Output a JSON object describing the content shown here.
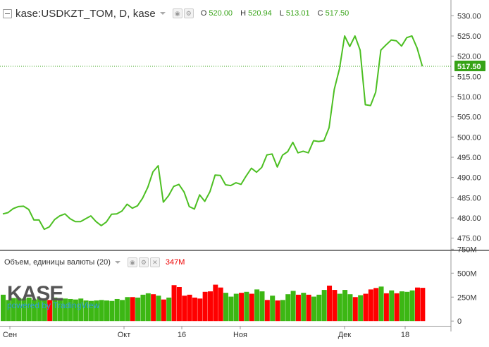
{
  "header": {
    "symbol": "kase:USDKZT_TOM, D, kase",
    "ohlc": [
      {
        "key": "O",
        "value": "520.00"
      },
      {
        "key": "H",
        "value": "520.94"
      },
      {
        "key": "L",
        "value": "513.01"
      },
      {
        "key": "C",
        "value": "517.50"
      }
    ]
  },
  "volume_header": {
    "label": "Объем, единицы валюты (20)",
    "value": "347M"
  },
  "logo": {
    "text": "KASE",
    "powered": "powered by TradingView"
  },
  "colors": {
    "up": "#3cb714",
    "down": "#ff0000",
    "line": "#4cbf22",
    "last_price_bg": "#37a317"
  },
  "chart_data": [
    {
      "type": "line",
      "title": "kase:USDKZT_TOM, D, kase",
      "x_tick_labels": [
        "Сен",
        "Окт",
        "16",
        "Ноя",
        "Дек",
        "18"
      ],
      "y_ticks": [
        "475.00",
        "480.00",
        "485.00",
        "490.00",
        "495.00",
        "500.00",
        "505.00",
        "510.00",
        "515.00",
        "520.00",
        "525.00",
        "530.00"
      ],
      "ylim": [
        472.5,
        532.5
      ],
      "last_value_label": "517.50",
      "last_value": 517.5,
      "values": [
        481.0,
        481.3,
        482.3,
        482.8,
        482.9,
        482.1,
        479.5,
        479.5,
        477.2,
        477.8,
        479.6,
        480.5,
        481.0,
        479.8,
        479.1,
        479.1,
        479.8,
        480.5,
        479.1,
        478.1,
        479.0,
        480.9,
        481.0,
        481.7,
        483.4,
        482.4,
        483.0,
        484.9,
        487.6,
        491.4,
        492.9,
        483.9,
        485.5,
        487.8,
        488.3,
        486.4,
        482.8,
        482.2,
        485.7,
        484.1,
        486.5,
        490.6,
        490.5,
        488.2,
        488.0,
        488.7,
        488.3,
        490.4,
        492.3,
        491.3,
        492.5,
        495.6,
        495.8,
        492.6,
        495.5,
        496.4,
        498.7,
        496.1,
        496.5,
        496.1,
        499.1,
        498.9,
        499.1,
        502.3,
        511.8,
        516.9,
        525.0,
        522.4,
        525.0,
        521.5,
        508.0,
        507.8,
        511.1,
        521.5,
        522.8,
        524.0,
        523.8,
        522.5,
        524.6,
        525.0,
        522.0,
        517.5
      ]
    },
    {
      "type": "bar",
      "title": "Объем, единицы валюты (20)",
      "y_ticks": [
        "0",
        "250M",
        "500M",
        "750M"
      ],
      "ylim": [
        -50,
        760
      ],
      "last_value_label": "347M",
      "values": [
        275,
        220,
        240,
        240,
        235,
        245,
        225,
        240,
        225,
        220,
        245,
        240,
        235,
        230,
        225,
        235,
        215,
        210,
        215,
        220,
        215,
        210,
        230,
        220,
        250,
        250,
        245,
        275,
        290,
        280,
        265,
        225,
        245,
        375,
        355,
        265,
        275,
        245,
        235,
        305,
        310,
        380,
        350,
        295,
        255,
        285,
        295,
        305,
        285,
        330,
        310,
        220,
        265,
        215,
        220,
        280,
        315,
        275,
        295,
        275,
        255,
        275,
        325,
        370,
        325,
        285,
        325,
        280,
        250,
        270,
        285,
        330,
        345,
        360,
        290,
        320,
        290,
        310,
        305,
        320,
        350,
        347
      ],
      "colors": [
        "g",
        "g",
        "g",
        "g",
        "g",
        "g",
        "g",
        "g",
        "g",
        "r",
        "g",
        "g",
        "g",
        "g",
        "g",
        "g",
        "g",
        "g",
        "g",
        "g",
        "g",
        "g",
        "g",
        "g",
        "g",
        "r",
        "g",
        "g",
        "g",
        "r",
        "g",
        "r",
        "g",
        "r",
        "r",
        "r",
        "r",
        "r",
        "r",
        "r",
        "r",
        "r",
        "r",
        "g",
        "g",
        "g",
        "r",
        "g",
        "r",
        "g",
        "g",
        "r",
        "g",
        "r",
        "g",
        "g",
        "g",
        "r",
        "g",
        "r",
        "g",
        "g",
        "g",
        "r",
        "r",
        "g",
        "g",
        "g",
        "r",
        "g",
        "r",
        "r",
        "r",
        "g",
        "r",
        "g",
        "r",
        "g",
        "g",
        "g",
        "r",
        "r"
      ]
    }
  ]
}
